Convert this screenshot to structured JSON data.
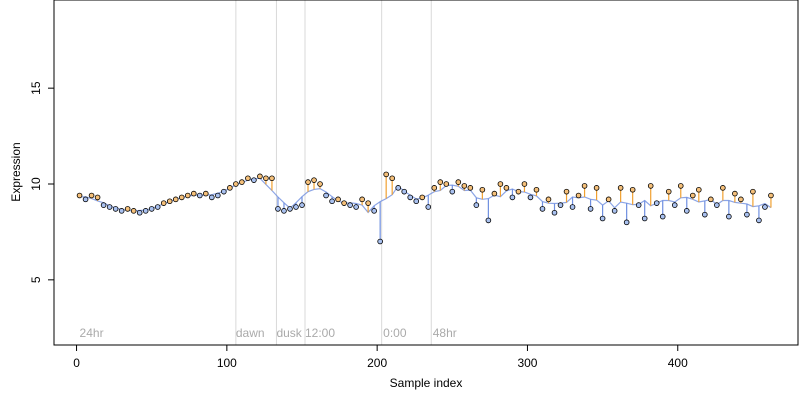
{
  "chart_data": {
    "type": "scatter",
    "title": "",
    "xlabel": "Sample index",
    "ylabel": "Expression",
    "xlim": [
      -15,
      480
    ],
    "ylim": [
      1.6,
      19.6
    ],
    "xticks": [
      0,
      100,
      200,
      300,
      400
    ],
    "yticks": [
      5,
      10,
      15
    ],
    "grid": false,
    "colors": {
      "point_stroke": "#000000",
      "point_fill_low": "#a9c1f0",
      "point_fill_high": "#f5c07a",
      "line_low": "#6f8fe0",
      "line_high": "#f0a030",
      "vline": "#d9d9d9",
      "annotation_text": "#aaaaaa"
    },
    "annotations": [
      {
        "x": 2,
        "label": "24hr"
      },
      {
        "x": 106,
        "label": "dawn"
      },
      {
        "x": 133,
        "label": "dusk"
      },
      {
        "x": 152,
        "label": "12:00"
      },
      {
        "x": 204,
        "label": "0:00"
      },
      {
        "x": 237,
        "label": "48hr"
      }
    ],
    "vlines": [
      106,
      133,
      152,
      203,
      236
    ],
    "series": [
      {
        "x": [
          2,
          6,
          10,
          14,
          18,
          22,
          26,
          30,
          34,
          38,
          42,
          46,
          50,
          54,
          58,
          62,
          66,
          70,
          74,
          78,
          82,
          86,
          90,
          94,
          98,
          102,
          106,
          110,
          114,
          118,
          122,
          126,
          130,
          134,
          138,
          142,
          146,
          150,
          154,
          158,
          162,
          166,
          170,
          174,
          178,
          182,
          186,
          190,
          194,
          198,
          202,
          206,
          210,
          214,
          218,
          222,
          226,
          230,
          234,
          238,
          242,
          246,
          250,
          254,
          258,
          262,
          266,
          270,
          274,
          278,
          282,
          286,
          290,
          294,
          298,
          302,
          306,
          310,
          314,
          318,
          322,
          326,
          330,
          334,
          338,
          342,
          346,
          350,
          354,
          358,
          362,
          366,
          370,
          374,
          378,
          382,
          386,
          390,
          394,
          398,
          402,
          406,
          410,
          414,
          418,
          422,
          426,
          430,
          434,
          438,
          442,
          446,
          450,
          454,
          458,
          462
        ],
        "y": [
          9.4,
          9.2,
          9.4,
          9.3,
          8.9,
          8.8,
          8.7,
          8.6,
          8.7,
          8.6,
          8.5,
          8.6,
          8.7,
          8.8,
          9.0,
          9.1,
          9.2,
          9.3,
          9.4,
          9.5,
          9.4,
          9.5,
          9.3,
          9.4,
          9.6,
          9.8,
          10.0,
          10.1,
          10.3,
          10.2,
          10.4,
          10.3,
          10.3,
          8.7,
          8.6,
          8.7,
          8.8,
          8.9,
          10.1,
          10.2,
          10.0,
          9.4,
          9.1,
          9.2,
          9.0,
          8.9,
          8.8,
          9.2,
          9.0,
          8.6,
          7.0,
          10.5,
          10.3,
          9.8,
          9.6,
          9.3,
          9.1,
          9.3,
          8.8,
          9.8,
          10.1,
          10.0,
          9.6,
          10.1,
          9.9,
          9.8,
          8.9,
          9.7,
          8.1,
          9.5,
          10.0,
          9.8,
          9.3,
          9.6,
          10.0,
          9.3,
          9.7,
          8.7,
          9.2,
          8.5,
          8.9,
          9.6,
          8.8,
          9.4,
          9.9,
          8.7,
          9.8,
          8.2,
          9.2,
          8.6,
          9.8,
          8.0,
          9.7,
          8.9,
          8.2,
          9.9,
          9.0,
          8.3,
          9.6,
          8.9,
          9.9,
          8.6,
          9.4,
          9.7,
          8.4,
          9.2,
          8.9,
          9.8,
          8.3,
          9.5,
          9.2,
          8.4,
          9.6,
          8.1,
          8.8,
          9.4
        ]
      }
    ]
  }
}
